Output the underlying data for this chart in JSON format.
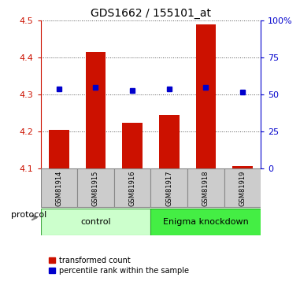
{
  "title": "GDS1662 / 155101_at",
  "samples": [
    "GSM81914",
    "GSM81915",
    "GSM81916",
    "GSM81917",
    "GSM81918",
    "GSM81919"
  ],
  "transformed_counts": [
    4.205,
    4.415,
    4.225,
    4.245,
    4.49,
    4.108
  ],
  "percentile_ranks": [
    54,
    55,
    53,
    54,
    55,
    52
  ],
  "ymin": 4.1,
  "ymax": 4.5,
  "yticks": [
    4.1,
    4.2,
    4.3,
    4.4,
    4.5
  ],
  "right_yticks": [
    0,
    25,
    50,
    75,
    100
  ],
  "right_ylabels": [
    "0",
    "25",
    "50",
    "75",
    "100%"
  ],
  "bar_color": "#cc1100",
  "dot_color": "#0000cc",
  "bar_bottom": 4.1,
  "control_color_light": "#ccffcc",
  "control_color_edge": "#44aa44",
  "enigma_color_light": "#44ee44",
  "enigma_color_edge": "#22aa22",
  "sample_box_color": "#cccccc",
  "sample_box_edge": "#888888",
  "grid_color": "#555555",
  "protocol_label": "protocol",
  "legend_items": [
    {
      "color": "#cc1100",
      "label": "transformed count"
    },
    {
      "color": "#0000cc",
      "label": "percentile rank within the sample"
    }
  ]
}
